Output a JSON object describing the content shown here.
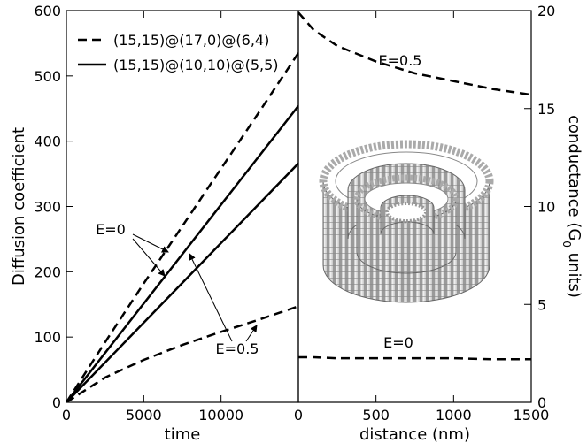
{
  "chart_data": [
    {
      "type": "line",
      "xlabel": "time",
      "ylabel": "Diffusion coefficient",
      "xlim": [
        0,
        15000
      ],
      "xticks": [
        0,
        5000,
        10000
      ],
      "ylim": [
        0,
        600
      ],
      "yticks": [
        0,
        100,
        200,
        300,
        400,
        500,
        600
      ],
      "series": [
        {
          "name": "(15,15)@(17,0)@(6,4)",
          "color": "#000000",
          "dash": true,
          "curves": [
            {
              "x": [
                0,
                2500,
                5000,
                7500,
                10000,
                12500,
                15000
              ],
              "values": [
                0,
                92,
                182,
                270,
                358,
                446,
                535
              ]
            },
            {
              "x": [
                0,
                2500,
                5000,
                7500,
                10000,
                12500,
                15000
              ],
              "values": [
                0,
                38,
                65,
                88,
                108,
                127,
                147
              ]
            }
          ]
        },
        {
          "name": "(15,15)@(10,10)@(5,5)",
          "color": "#000000",
          "dash": false,
          "curves": [
            {
              "x": [
                0,
                15000
              ],
              "values": [
                0,
                454
              ]
            },
            {
              "x": [
                0,
                15000
              ],
              "values": [
                0,
                366
              ]
            }
          ]
        }
      ],
      "annotations": [
        "E=0",
        "E=0.5"
      ]
    },
    {
      "type": "line",
      "xlabel": "distance (nm)",
      "y2label": [
        "conductance (G",
        "0",
        " units)"
      ],
      "xlim": [
        0,
        1500
      ],
      "xticks": [
        0,
        500,
        1000,
        1500
      ],
      "y2lim": [
        0,
        20
      ],
      "y2ticks": [
        0,
        5,
        10,
        15,
        20
      ],
      "series": [
        {
          "color": "#000000",
          "dash": true,
          "axis": "y2",
          "curves": [
            {
              "x": [
                0,
                100,
                250,
                500,
                750,
                1000,
                1250,
                1500
              ],
              "values": [
                19.9,
                19.0,
                18.2,
                17.4,
                16.8,
                16.4,
                16.0,
                15.7
              ]
            },
            {
              "x": [
                0,
                100,
                250,
                500,
                750,
                1000,
                1250,
                1500
              ],
              "values": [
                2.3,
                2.3,
                2.25,
                2.25,
                2.25,
                2.25,
                2.2,
                2.2
              ]
            }
          ]
        }
      ],
      "annotations": [
        "E=0.5",
        "E=0"
      ]
    }
  ]
}
